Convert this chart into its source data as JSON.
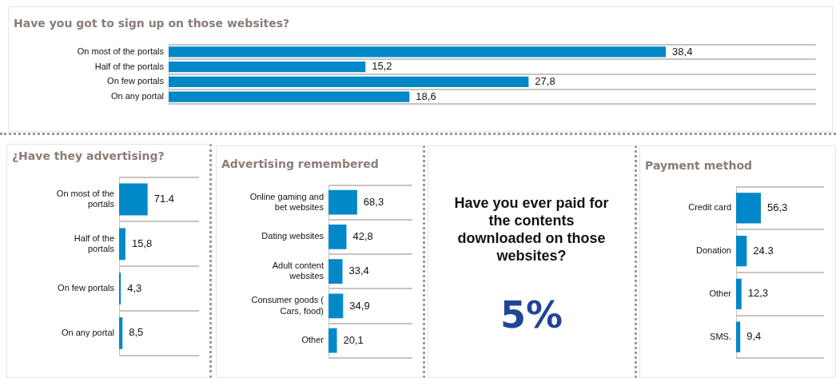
{
  "chart_data": [
    {
      "type": "bar",
      "orientation": "horizontal",
      "title": "Have you got to sign up on those websites?",
      "categories": [
        "On most of the portals",
        "Half of the portals",
        "On few portals",
        "On any portal"
      ],
      "values": [
        38.4,
        15.2,
        27.8,
        18.6
      ],
      "value_labels": [
        "38,4",
        "15,2",
        "27,8",
        "18,6"
      ],
      "color": "#0088c8",
      "grid": "y",
      "legend": false
    },
    {
      "type": "bar",
      "orientation": "horizontal",
      "title": "¿Have they advertising?",
      "categories": [
        "On most of the portals",
        "Half of the portals",
        "On few portals",
        "On any portal"
      ],
      "values": [
        71.4,
        15.8,
        4.3,
        8.5
      ],
      "value_labels": [
        "71.4",
        "15,8",
        "4,3",
        "8,5"
      ],
      "color": "#0088c8",
      "grid": "y",
      "legend": false
    },
    {
      "type": "bar",
      "orientation": "horizontal",
      "title": "Advertising remembered",
      "categories": [
        "Online gaming and bet websites",
        "Dating websites",
        "Adult content websites",
        "Consumer goods ( Cars, food)",
        "Other"
      ],
      "values": [
        68.3,
        42.8,
        33.4,
        34.9,
        20.1
      ],
      "value_labels": [
        "68,3",
        "42,8",
        "33,4",
        "34,9",
        "20,1"
      ],
      "color": "#0088c8",
      "grid": "y",
      "legend": false
    },
    {
      "type": "other",
      "title": "Have you ever paid for the contents downloaded on those websites?",
      "annotations": [
        "5%"
      ]
    },
    {
      "type": "bar",
      "orientation": "horizontal",
      "title": "Payment method",
      "categories": [
        "Credit card",
        "Donation",
        "Other",
        "SMS."
      ],
      "values": [
        56.3,
        24.3,
        12.3,
        9.4
      ],
      "value_labels": [
        "56,3",
        "24.3",
        "12,3",
        "9,4"
      ],
      "color": "#0088c8",
      "grid": "y",
      "legend": false
    }
  ]
}
